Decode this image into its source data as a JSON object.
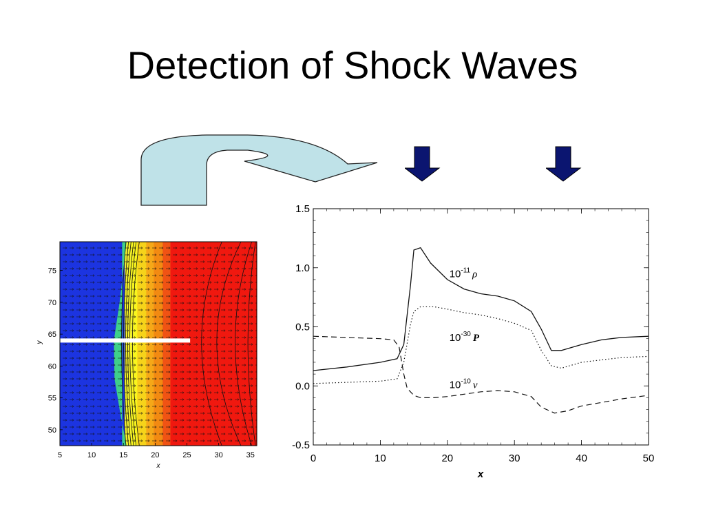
{
  "slide": {
    "title": "Detection of Shock Waves"
  },
  "chart_data": [
    {
      "type": "heatmap",
      "title": "",
      "xlabel": "x",
      "ylabel": "y",
      "xlim": [
        5,
        36
      ],
      "ylim": [
        47.5,
        79.5
      ],
      "x_ticks": [
        "5",
        "10",
        "15",
        "20",
        "25",
        "30",
        "35"
      ],
      "y_ticks": [
        "50",
        "55",
        "60",
        "65",
        "70",
        "75"
      ],
      "colors": {
        "preshock": "#1c34e0",
        "shock_front": "#3fd08a",
        "yellow": "#f3f22c",
        "orange": "#f28a12",
        "postshock": "#f0180f"
      },
      "cut_line": {
        "y": 64,
        "x_start": 5,
        "x_end": 25.5,
        "color": "#ffffff"
      }
    },
    {
      "type": "line",
      "title": "",
      "xlabel": "x",
      "ylabel": "",
      "xlim": [
        0,
        50
      ],
      "ylim": [
        -0.5,
        1.5
      ],
      "x_ticks": [
        "0",
        "10",
        "20",
        "30",
        "40",
        "50"
      ],
      "y_ticks": [
        "1.5",
        "1.0",
        "0.5",
        "0.0",
        "-0.5"
      ],
      "series": [
        {
          "name": "10-11 ρ",
          "label_base": "10",
          "label_exp": "-11",
          "label_sym": "ρ",
          "style": "solid",
          "x": [
            0,
            5,
            10,
            12.5,
            13.5,
            14.5,
            15,
            16,
            17.5,
            20,
            22.5,
            25,
            27.5,
            30,
            32.5,
            34,
            35.5,
            37,
            40,
            43,
            46,
            50
          ],
          "y": [
            0.13,
            0.16,
            0.2,
            0.23,
            0.35,
            0.85,
            1.15,
            1.17,
            1.04,
            0.9,
            0.82,
            0.78,
            0.76,
            0.72,
            0.63,
            0.48,
            0.3,
            0.3,
            0.35,
            0.39,
            0.41,
            0.42
          ]
        },
        {
          "name": "10-30 P",
          "label_base": "10",
          "label_exp": "-30",
          "label_sym": "P",
          "style": "dotted",
          "x": [
            0,
            5,
            10,
            12.5,
            13.5,
            14.5,
            15,
            16,
            18,
            20,
            22.5,
            25,
            27.5,
            30,
            32.5,
            34,
            35.5,
            37,
            40,
            43,
            46,
            50
          ],
          "y": [
            0.02,
            0.03,
            0.04,
            0.06,
            0.2,
            0.52,
            0.63,
            0.67,
            0.67,
            0.65,
            0.62,
            0.6,
            0.57,
            0.53,
            0.47,
            0.3,
            0.17,
            0.15,
            0.2,
            0.22,
            0.24,
            0.25
          ]
        },
        {
          "name": "10-10 v",
          "label_base": "10",
          "label_exp": "-10",
          "label_sym": "v",
          "style": "dashed",
          "x": [
            0,
            5,
            10,
            12,
            12.8,
            13.5,
            14,
            15,
            16,
            18,
            20,
            22.5,
            25,
            27.5,
            30,
            32.5,
            34,
            36,
            38,
            40,
            43,
            46,
            50
          ],
          "y": [
            0.42,
            0.41,
            0.4,
            0.39,
            0.33,
            0.1,
            -0.02,
            -0.08,
            -0.1,
            -0.1,
            -0.09,
            -0.07,
            -0.05,
            -0.04,
            -0.05,
            -0.09,
            -0.18,
            -0.23,
            -0.21,
            -0.17,
            -0.14,
            -0.11,
            -0.08
          ]
        }
      ]
    }
  ]
}
